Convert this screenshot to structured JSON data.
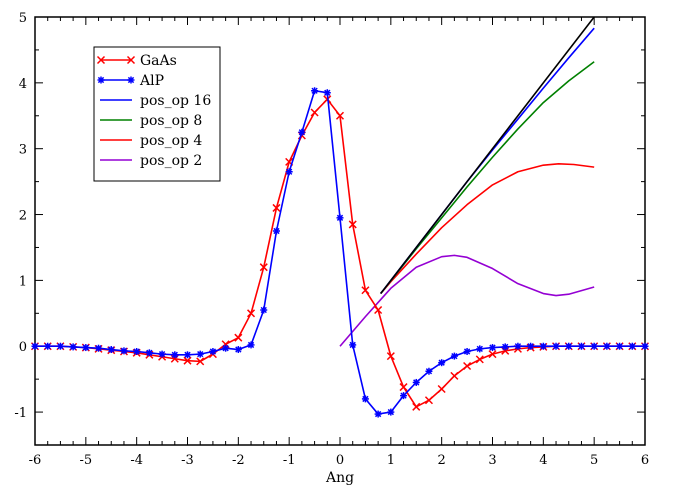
{
  "chart_data": {
    "type": "line",
    "xlabel": "Ang",
    "ylabel": "",
    "xlim": [
      -6,
      6
    ],
    "ylim": [
      -1.5,
      5
    ],
    "xticks": [
      -6,
      -5,
      -4,
      -3,
      -2,
      -1,
      0,
      1,
      2,
      3,
      4,
      5,
      6
    ],
    "yticks": [
      -1,
      0,
      1,
      2,
      3,
      4,
      5
    ],
    "grid": false,
    "legend_position": "top-left",
    "series": [
      {
        "name": "GaAs",
        "color": "#ff0000",
        "marker": "x",
        "x": [
          -6.0,
          -5.75,
          -5.5,
          -5.25,
          -5.0,
          -4.75,
          -4.5,
          -4.25,
          -4.0,
          -3.75,
          -3.5,
          -3.25,
          -3.0,
          -2.75,
          -2.5,
          -2.25,
          -2.0,
          -1.75,
          -1.5,
          -1.25,
          -1.0,
          -0.75,
          -0.5,
          -0.25,
          0.0,
          0.25,
          0.5,
          0.75,
          1.0,
          1.25,
          1.5,
          1.75,
          2.0,
          2.25,
          2.5,
          2.75,
          3.0,
          3.25,
          3.5,
          3.75,
          4.0,
          4.25,
          4.5,
          4.75,
          5.0,
          5.25,
          5.5,
          5.75,
          6.0
        ],
        "y": [
          0.0,
          0.0,
          0.0,
          -0.01,
          -0.02,
          -0.04,
          -0.06,
          -0.08,
          -0.1,
          -0.13,
          -0.16,
          -0.19,
          -0.22,
          -0.23,
          -0.12,
          0.03,
          0.13,
          0.5,
          1.2,
          2.1,
          2.8,
          3.2,
          3.55,
          3.75,
          3.5,
          1.85,
          0.85,
          0.55,
          -0.15,
          -0.62,
          -0.92,
          -0.82,
          -0.65,
          -0.45,
          -0.3,
          -0.2,
          -0.12,
          -0.07,
          -0.04,
          -0.02,
          -0.01,
          0.0,
          0.0,
          0.0,
          0.0,
          0.0,
          0.0,
          0.0,
          0.0
        ]
      },
      {
        "name": "AlP",
        "color": "#0000ff",
        "marker": "asterisk",
        "x": [
          -6.0,
          -5.75,
          -5.5,
          -5.25,
          -5.0,
          -4.75,
          -4.5,
          -4.25,
          -4.0,
          -3.75,
          -3.5,
          -3.25,
          -3.0,
          -2.75,
          -2.5,
          -2.25,
          -2.0,
          -1.75,
          -1.5,
          -1.25,
          -1.0,
          -0.75,
          -0.5,
          -0.25,
          0.0,
          0.25,
          0.5,
          0.75,
          1.0,
          1.25,
          1.5,
          1.75,
          2.0,
          2.25,
          2.5,
          2.75,
          3.0,
          3.25,
          3.5,
          3.75,
          4.0,
          4.25,
          4.5,
          4.75,
          5.0,
          5.25,
          5.5,
          5.75,
          6.0
        ],
        "y": [
          0.0,
          0.0,
          0.0,
          -0.01,
          -0.02,
          -0.03,
          -0.05,
          -0.07,
          -0.08,
          -0.1,
          -0.12,
          -0.13,
          -0.13,
          -0.12,
          -0.08,
          -0.03,
          -0.05,
          0.02,
          0.55,
          1.75,
          2.65,
          3.25,
          3.88,
          3.85,
          1.95,
          0.02,
          -0.8,
          -1.03,
          -1.0,
          -0.75,
          -0.55,
          -0.38,
          -0.25,
          -0.15,
          -0.08,
          -0.04,
          -0.02,
          -0.01,
          0.0,
          0.0,
          0.0,
          0.0,
          0.0,
          0.0,
          0.0,
          0.0,
          0.0,
          0.0,
          0.0
        ]
      },
      {
        "name": "",
        "color": "#000000",
        "marker": "none",
        "x": [
          0.8,
          5.0
        ],
        "y": [
          0.8,
          5.0
        ]
      },
      {
        "name": "pos_op 16",
        "color": "#0000ff",
        "marker": "none",
        "x": [
          0.8,
          1.5,
          2.0,
          2.5,
          3.0,
          3.5,
          4.0,
          4.5,
          5.0
        ],
        "y": [
          0.8,
          1.5,
          2.0,
          2.5,
          2.98,
          3.45,
          3.92,
          4.38,
          4.83
        ]
      },
      {
        "name": "pos_op 8",
        "color": "#008000",
        "marker": "none",
        "x": [
          0.8,
          1.5,
          2.0,
          2.5,
          3.0,
          3.5,
          4.0,
          4.5,
          5.0
        ],
        "y": [
          0.8,
          1.48,
          1.95,
          2.42,
          2.87,
          3.3,
          3.7,
          4.03,
          4.32
        ]
      },
      {
        "name": "pos_op 4",
        "color": "#ff0000",
        "marker": "none",
        "x": [
          0.8,
          1.0,
          1.5,
          2.0,
          2.5,
          3.0,
          3.5,
          4.0,
          4.3,
          4.6,
          5.0
        ],
        "y": [
          0.8,
          0.98,
          1.4,
          1.8,
          2.15,
          2.45,
          2.65,
          2.75,
          2.77,
          2.76,
          2.72
        ]
      },
      {
        "name": "pos_op 2",
        "color": "#9400d3",
        "marker": "none",
        "x": [
          0.0,
          0.5,
          1.0,
          1.5,
          2.0,
          2.25,
          2.5,
          3.0,
          3.5,
          4.0,
          4.25,
          4.5,
          5.0
        ],
        "y": [
          0.0,
          0.45,
          0.88,
          1.2,
          1.36,
          1.38,
          1.35,
          1.18,
          0.95,
          0.8,
          0.77,
          0.79,
          0.9
        ]
      }
    ]
  }
}
